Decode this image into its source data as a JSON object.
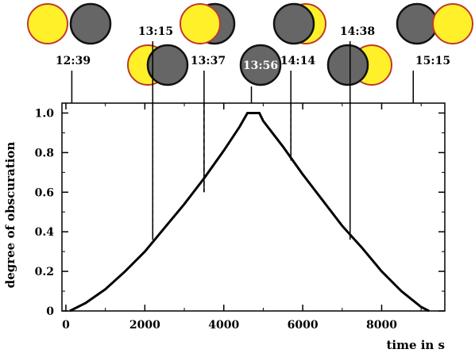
{
  "chart_data": {
    "type": "line",
    "title": "",
    "xlabel": "time in s",
    "ylabel": "degree of obscuration",
    "xlim": [
      -100,
      9600
    ],
    "ylim": [
      0,
      1.05
    ],
    "x_ticks": [
      "0",
      "2000",
      "4000",
      "6000",
      "8000"
    ],
    "y_ticks": [
      "0",
      "0.2",
      "0.4",
      "0.6",
      "0.8",
      "1.0"
    ],
    "grid": false,
    "series": [
      {
        "x": [
          100,
          500,
          1000,
          1500,
          2000,
          2500,
          3000,
          3500,
          4000,
          4400,
          4600,
          4900,
          5000,
          5500,
          6000,
          6500,
          7000,
          7500,
          8000,
          8500,
          9000,
          9200
        ],
        "y": [
          0.0,
          0.04,
          0.11,
          0.2,
          0.3,
          0.42,
          0.54,
          0.67,
          0.81,
          0.93,
          1.0,
          1.0,
          0.96,
          0.83,
          0.69,
          0.56,
          0.43,
          0.32,
          0.2,
          0.1,
          0.02,
          0.0
        ]
      }
    ],
    "annotations": [
      {
        "time": "12:39",
        "x": 150,
        "type": "solid",
        "y_end": 1.05,
        "phase": "separate"
      },
      {
        "time": "13:15",
        "x": 2200,
        "type": "dashed",
        "y_end": 0.36,
        "phase": "overlap-small"
      },
      {
        "time": "13:37",
        "x": 3500,
        "type": "dashed",
        "y_end": 0.6,
        "phase": "overlap-large"
      },
      {
        "time": "13:56",
        "x": 4700,
        "type": "solid",
        "y_end": 1.05,
        "phase": "total",
        "highlight": true
      },
      {
        "time": "14:14",
        "x": 5700,
        "type": "dashed",
        "y_end": 0.76,
        "phase": "overlap-large"
      },
      {
        "time": "14:38",
        "x": 7200,
        "type": "dashed",
        "y_end": 0.36,
        "phase": "overlap-small"
      },
      {
        "time": "15:15",
        "x": 8800,
        "type": "solid",
        "y_end": 1.05,
        "phase": "separate"
      }
    ]
  },
  "colors": {
    "sun_fill": "#fff02a",
    "sun_stroke": "#c0392b",
    "moon_fill": "#666666",
    "moon_stroke": "#111111",
    "curve": "#000000",
    "highlight_text": "#ffffff"
  }
}
